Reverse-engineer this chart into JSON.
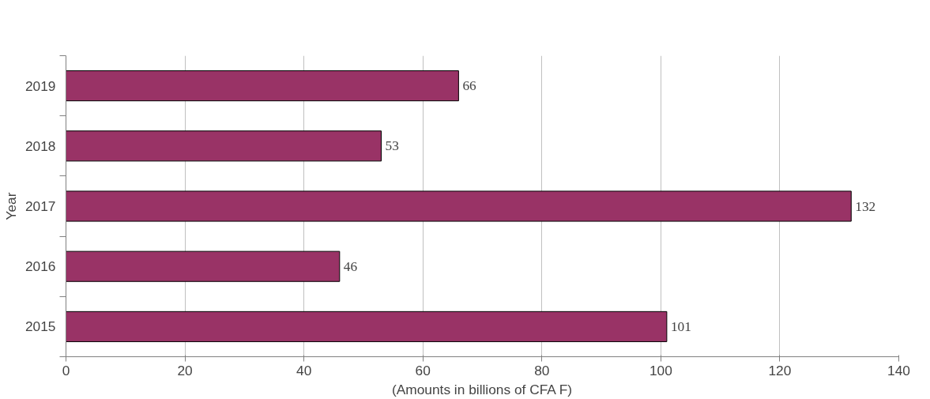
{
  "chart_data": {
    "type": "bar",
    "orientation": "horizontal",
    "xlabel": "(Amounts in billions of CFA F)",
    "ylabel": "Year",
    "categories": [
      "2019",
      "2018",
      "2017",
      "2016",
      "2015"
    ],
    "values": [
      66,
      53,
      132,
      46,
      101
    ],
    "color": "#993366",
    "xlim": [
      0,
      140
    ],
    "xticks": [
      0,
      20,
      40,
      60,
      80,
      100,
      120,
      140
    ],
    "grid": "x",
    "data_labels": true
  }
}
